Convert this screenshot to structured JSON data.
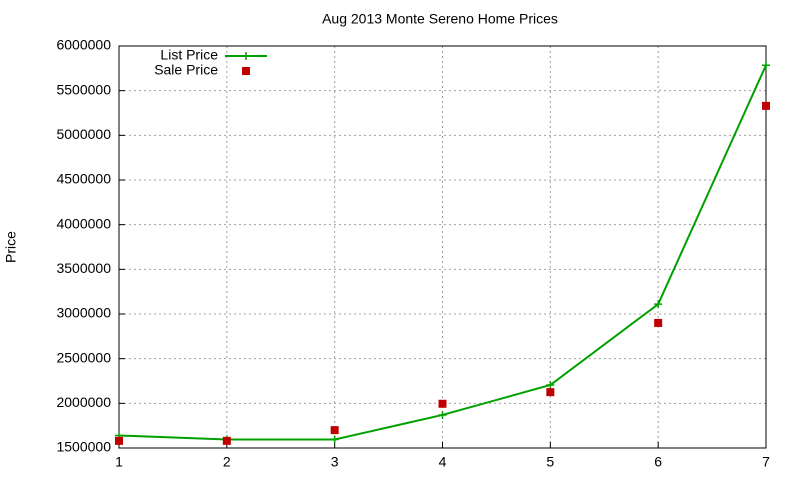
{
  "chart_data": {
    "type": "line",
    "title": "Aug 2013 Monte Sereno Home Prices",
    "y_label": "Price",
    "x": [
      1,
      2,
      3,
      4,
      5,
      6,
      7
    ],
    "series": [
      {
        "name": "List Price",
        "color": "#00a000",
        "style": "line",
        "values": [
          1640000,
          1595000,
          1595000,
          1870000,
          2205000,
          3110000,
          5785000
        ]
      },
      {
        "name": "Sale Price",
        "color": "#c00000",
        "style": "points",
        "values": [
          1580000,
          1580000,
          1700000,
          1995000,
          2125000,
          2900000,
          5330000
        ]
      }
    ],
    "xlim": [
      1,
      7
    ],
    "xticks": [
      1,
      2,
      3,
      4,
      5,
      6,
      7
    ],
    "ylim": [
      1500000,
      6000000
    ],
    "yticks": [
      1500000,
      2000000,
      2500000,
      3000000,
      3500000,
      4000000,
      4500000,
      5000000,
      5500000,
      6000000
    ],
    "grid": true,
    "legend": "top-left"
  }
}
